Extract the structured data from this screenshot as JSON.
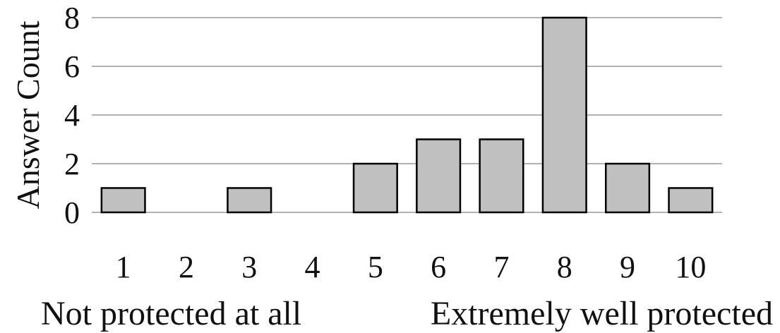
{
  "chart_data": {
    "type": "bar",
    "categories": [
      "1",
      "2",
      "3",
      "4",
      "5",
      "6",
      "7",
      "8",
      "9",
      "10"
    ],
    "values": [
      1,
      0,
      1,
      0,
      2,
      3,
      3,
      8,
      2,
      1
    ],
    "ylabel": "Answer Count",
    "ylim": [
      0,
      8
    ],
    "yticks": [
      0,
      2,
      4,
      6,
      8
    ],
    "grid": true,
    "scale_labels": {
      "low": "Not protected at all",
      "high": "Extremely well protected"
    },
    "colors": {
      "bar_fill": "#c0c0c0",
      "bar_stroke": "#000000",
      "grid": "#b3b3b3"
    }
  }
}
